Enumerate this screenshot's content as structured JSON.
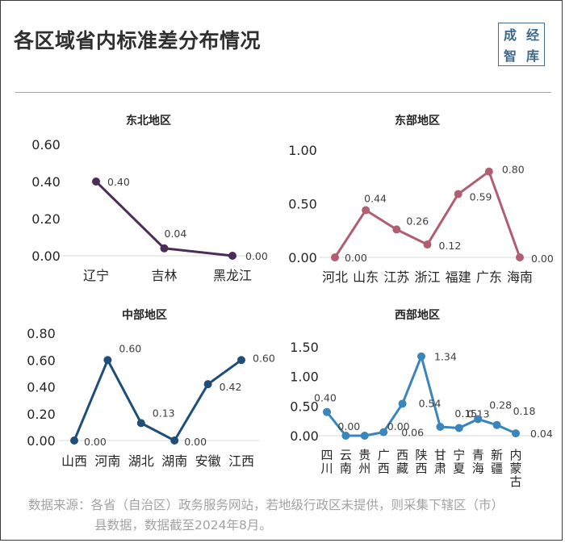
{
  "header": {
    "title": "各区域省内标准差分布情况",
    "logo": [
      "成",
      "经",
      "智",
      "库"
    ]
  },
  "footer": {
    "source_line1": "数据来源：各省（自治区）政务服务网站，若地级行政区未提供，则采集下辖区（市）",
    "source_line2": "县数据，数据截至2024年8月。"
  },
  "chart_data": [
    {
      "type": "line",
      "title": "东北地区",
      "color": "#4b2d58",
      "categories": [
        "辽宁",
        "吉林",
        "黑龙江"
      ],
      "values": [
        0.4,
        0.04,
        0.0
      ],
      "labels": [
        "0.40",
        "0.04",
        "0.00"
      ],
      "yticks": [
        "0.60",
        "0.40",
        "0.20",
        "0.00"
      ],
      "ylim": [
        0,
        0.6
      ],
      "vertical_xlabels": false
    },
    {
      "type": "line",
      "title": "东部地区",
      "color": "#b15d72",
      "categories": [
        "河北",
        "山东",
        "江苏",
        "浙江",
        "福建",
        "广东",
        "海南"
      ],
      "values": [
        0.0,
        0.44,
        0.26,
        0.12,
        0.59,
        0.8,
        0.0
      ],
      "labels": [
        "0.00",
        "0.44",
        "0.26",
        "0.12",
        "0.59",
        "0.80",
        "0.00"
      ],
      "yticks": [
        "1.00",
        "0.50",
        "0.00"
      ],
      "ylim": [
        0,
        1.0
      ],
      "vertical_xlabels": false
    },
    {
      "type": "line",
      "title": "中部地区",
      "color": "#1f4e79",
      "categories": [
        "山西",
        "河南",
        "湖北",
        "湖南",
        "安徽",
        "江西"
      ],
      "values": [
        0.0,
        0.6,
        0.13,
        0.0,
        0.42,
        0.6
      ],
      "labels": [
        "0.00",
        "0.60",
        "0.13",
        "0.00",
        "0.42",
        "0.60"
      ],
      "yticks": [
        "0.80",
        "0.60",
        "0.40",
        "0.20",
        "0.00"
      ],
      "ylim": [
        0,
        0.8
      ],
      "vertical_xlabels": false
    },
    {
      "type": "line",
      "title": "西部地区",
      "color": "#3a85b9",
      "categories": [
        "四川",
        "云南",
        "贵州",
        "广西",
        "西藏",
        "陕西",
        "甘肃",
        "宁夏",
        "青海",
        "新疆",
        "内蒙古"
      ],
      "values": [
        0.4,
        0.0,
        0.0,
        0.06,
        0.54,
        1.34,
        0.15,
        0.13,
        0.28,
        0.18,
        0.04
      ],
      "labels": [
        "0.40",
        "0.00",
        "0.00",
        "0.06",
        "0.54",
        "1.34",
        "0.15",
        "0.13",
        "0.28",
        "0.18",
        "0.04"
      ],
      "yticks": [
        "1.50",
        "1.00",
        "0.50",
        "0.00"
      ],
      "ylim": [
        0,
        1.5
      ],
      "vertical_xlabels": true
    }
  ]
}
